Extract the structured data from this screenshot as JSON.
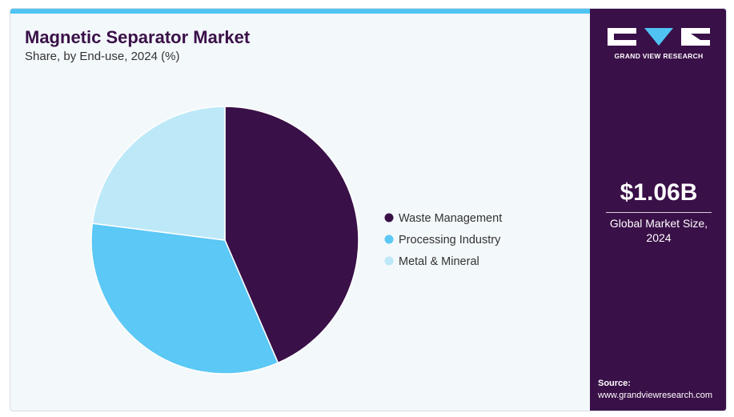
{
  "header": {
    "title": "Magnetic Separator Market",
    "subtitle": "Share, by End-use, 2024 (%)"
  },
  "chart_data": {
    "type": "pie",
    "title": "Magnetic Separator Market",
    "subtitle": "Share, by End-use, 2024 (%)",
    "categories": [
      "Waste Management",
      "Processing Industry",
      "Metal & Mineral"
    ],
    "values": [
      43.5,
      33.5,
      23.0
    ],
    "colors": [
      "#3a1048",
      "#5bc8f5",
      "#bde8f8"
    ],
    "start_angle": "12 o'clock",
    "direction": "clockwise",
    "legend_position": "right"
  },
  "sidebar": {
    "brand": "GRAND VIEW RESEARCH",
    "market_value": "$1.06B",
    "market_label": "Global Market Size, 2024",
    "source_label": "Source:",
    "source_url": "www.grandviewresearch.com"
  }
}
